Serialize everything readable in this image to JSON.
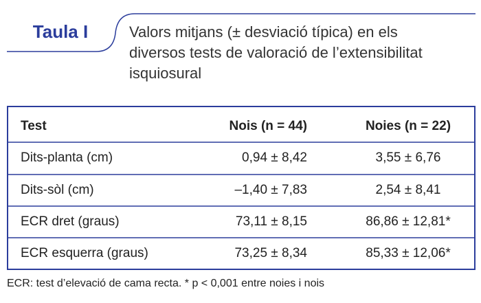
{
  "header": {
    "label": "Taula I",
    "caption": [
      "Valors mitjans (± desviació típica) en els",
      "diversos tests de valoració de l’extensibilitat",
      "isquiosural"
    ]
  },
  "table": {
    "columns": [
      "Test",
      "Nois (n = 44)",
      "Noies (n = 22)"
    ],
    "rows": [
      [
        "Dits-planta (cm)",
        "0,94 ± 8,42",
        "3,55 ± 6,76"
      ],
      [
        "Dits-sòl (cm)",
        "–1,40 ± 7,83",
        "2,54 ± 8,41"
      ],
      [
        "ECR dret (graus)",
        "73,11 ± 8,15",
        "86,86 ± 12,81*"
      ],
      [
        "ECR esquerra (graus)",
        "73,25 ± 8,34",
        "85,33 ± 12,06*"
      ]
    ]
  },
  "footnote": "ECR: test d’elevació de cama recta. * p < 0,001 entre noies i nois"
}
